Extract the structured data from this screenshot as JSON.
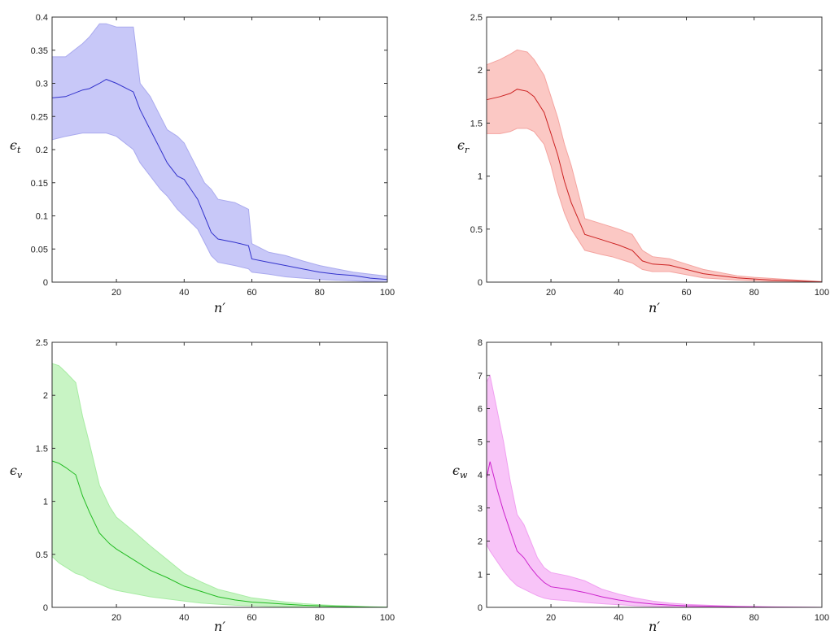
{
  "chart_data": [
    {
      "type": "area",
      "ylabel": {
        "main": "ϵ",
        "sub": "t"
      },
      "xlabel": "n′",
      "xlim": [
        1,
        100
      ],
      "ylim": [
        0,
        0.4
      ],
      "xticks": [
        20,
        40,
        60,
        80,
        100
      ],
      "yticks": [
        0,
        0.05,
        0.1,
        0.15,
        0.2,
        0.25,
        0.3,
        0.35,
        0.4
      ],
      "ytick_labels": [
        "0",
        "0.05",
        "0.1",
        "0.15",
        "0.2",
        "0.25",
        "0.3",
        "0.35",
        "0.4"
      ],
      "line_color": "#3333cc",
      "fill_color": "#c8c8f8",
      "fill_stroke": "#aaaaee",
      "series": [
        {
          "x": [
            1,
            5,
            10,
            12,
            15,
            17,
            20,
            25,
            27,
            30,
            33,
            35,
            38,
            40,
            42,
            44,
            46,
            48,
            50,
            55,
            59,
            60,
            65,
            70,
            75,
            80,
            85,
            90,
            95,
            100
          ],
          "mean": [
            0.278,
            0.28,
            0.29,
            0.292,
            0.3,
            0.306,
            0.3,
            0.287,
            0.26,
            0.23,
            0.2,
            0.18,
            0.16,
            0.155,
            0.14,
            0.125,
            0.1,
            0.075,
            0.065,
            0.06,
            0.055,
            0.035,
            0.03,
            0.025,
            0.02,
            0.015,
            0.012,
            0.01,
            0.006,
            0.004
          ],
          "upper": [
            0.34,
            0.34,
            0.36,
            0.37,
            0.39,
            0.39,
            0.385,
            0.385,
            0.3,
            0.28,
            0.25,
            0.23,
            0.22,
            0.21,
            0.19,
            0.17,
            0.15,
            0.14,
            0.125,
            0.12,
            0.11,
            0.058,
            0.045,
            0.04,
            0.032,
            0.025,
            0.02,
            0.015,
            0.012,
            0.009
          ],
          "lower": [
            0.215,
            0.22,
            0.225,
            0.225,
            0.225,
            0.225,
            0.22,
            0.2,
            0.18,
            0.16,
            0.14,
            0.13,
            0.11,
            0.1,
            0.09,
            0.08,
            0.06,
            0.04,
            0.03,
            0.025,
            0.02,
            0.015,
            0.012,
            0.008,
            0.006,
            0.004,
            0.003,
            0.002,
            0.001,
            0.0
          ]
        }
      ]
    },
    {
      "type": "area",
      "ylabel": {
        "main": "ϵ",
        "sub": "r"
      },
      "xlabel": "n′",
      "xlim": [
        1,
        100
      ],
      "ylim": [
        0,
        2.5
      ],
      "xticks": [
        20,
        40,
        60,
        80,
        100
      ],
      "yticks": [
        0,
        0.5,
        1,
        1.5,
        2,
        2.5
      ],
      "ytick_labels": [
        "0",
        "0.5",
        "1",
        "1.5",
        "2",
        "2.5"
      ],
      "line_color": "#cc2222",
      "fill_color": "#fbc8c4",
      "fill_stroke": "#f4a4a0",
      "series": [
        {
          "x": [
            1,
            5,
            8,
            10,
            13,
            15,
            18,
            20,
            22,
            24,
            26,
            28,
            30,
            35,
            38,
            40,
            44,
            47,
            50,
            55,
            60,
            65,
            70,
            75,
            80,
            85,
            90,
            95,
            100
          ],
          "mean": [
            1.72,
            1.75,
            1.78,
            1.82,
            1.8,
            1.75,
            1.6,
            1.4,
            1.2,
            0.95,
            0.75,
            0.6,
            0.45,
            0.4,
            0.37,
            0.35,
            0.3,
            0.2,
            0.17,
            0.16,
            0.12,
            0.08,
            0.06,
            0.04,
            0.03,
            0.02,
            0.015,
            0.008,
            0.003
          ],
          "upper": [
            2.05,
            2.1,
            2.15,
            2.19,
            2.17,
            2.1,
            1.95,
            1.75,
            1.55,
            1.3,
            1.1,
            0.85,
            0.6,
            0.55,
            0.52,
            0.5,
            0.45,
            0.3,
            0.24,
            0.22,
            0.17,
            0.12,
            0.09,
            0.06,
            0.045,
            0.035,
            0.025,
            0.015,
            0.006
          ],
          "lower": [
            1.4,
            1.4,
            1.42,
            1.45,
            1.45,
            1.42,
            1.3,
            1.1,
            0.85,
            0.65,
            0.5,
            0.4,
            0.3,
            0.26,
            0.24,
            0.22,
            0.18,
            0.12,
            0.1,
            0.1,
            0.07,
            0.04,
            0.03,
            0.02,
            0.012,
            0.008,
            0.005,
            0.002,
            0.0
          ]
        }
      ]
    },
    {
      "type": "area",
      "ylabel": {
        "main": "ϵ",
        "sub": "v"
      },
      "xlabel": "n′",
      "xlim": [
        1,
        100
      ],
      "ylim": [
        0,
        2.5
      ],
      "xticks": [
        20,
        40,
        60,
        80,
        100
      ],
      "yticks": [
        0,
        0.5,
        1,
        1.5,
        2,
        2.5
      ],
      "ytick_labels": [
        "0",
        "0.5",
        "1",
        "1.5",
        "2",
        "2.5"
      ],
      "line_color": "#22bb22",
      "fill_color": "#c8f4c4",
      "fill_stroke": "#a8eca4",
      "series": [
        {
          "x": [
            1,
            3,
            5,
            8,
            10,
            12,
            15,
            18,
            20,
            25,
            30,
            35,
            40,
            45,
            50,
            55,
            60,
            65,
            70,
            75,
            80,
            85,
            90,
            95,
            100
          ],
          "mean": [
            1.38,
            1.36,
            1.32,
            1.25,
            1.05,
            0.9,
            0.7,
            0.6,
            0.55,
            0.45,
            0.35,
            0.28,
            0.2,
            0.15,
            0.1,
            0.07,
            0.05,
            0.04,
            0.03,
            0.02,
            0.015,
            0.01,
            0.006,
            0.003,
            0.001
          ],
          "upper": [
            2.3,
            2.28,
            2.22,
            2.12,
            1.8,
            1.55,
            1.15,
            0.95,
            0.85,
            0.72,
            0.58,
            0.45,
            0.32,
            0.24,
            0.17,
            0.13,
            0.09,
            0.07,
            0.05,
            0.035,
            0.025,
            0.018,
            0.012,
            0.006,
            0.002
          ],
          "lower": [
            0.48,
            0.42,
            0.38,
            0.32,
            0.3,
            0.26,
            0.22,
            0.18,
            0.16,
            0.13,
            0.1,
            0.08,
            0.06,
            0.04,
            0.03,
            0.02,
            0.015,
            0.01,
            0.008,
            0.005,
            0.003,
            0.002,
            0.001,
            0.0,
            0.0
          ]
        }
      ]
    },
    {
      "type": "area",
      "ylabel": {
        "main": "ϵ",
        "sub": "w"
      },
      "xlabel": "n′",
      "xlim": [
        1,
        100
      ],
      "ylim": [
        0,
        8
      ],
      "xticks": [
        20,
        40,
        60,
        80,
        100
      ],
      "yticks": [
        0,
        1,
        2,
        3,
        4,
        5,
        6,
        7,
        8
      ],
      "ytick_labels": [
        "0",
        "1",
        "2",
        "3",
        "4",
        "5",
        "6",
        "7",
        "8"
      ],
      "line_color": "#cc22cc",
      "fill_color": "#f8c4f8",
      "fill_stroke": "#f0a0f0",
      "series": [
        {
          "x": [
            1,
            2,
            4,
            6,
            8,
            10,
            12,
            14,
            16,
            18,
            20,
            25,
            30,
            35,
            40,
            45,
            50,
            55,
            60,
            65,
            70,
            75,
            80,
            85,
            90,
            95,
            100
          ],
          "mean": [
            3.9,
            4.4,
            3.6,
            2.9,
            2.3,
            1.7,
            1.5,
            1.2,
            0.95,
            0.75,
            0.62,
            0.55,
            0.45,
            0.32,
            0.22,
            0.15,
            0.1,
            0.07,
            0.05,
            0.04,
            0.03,
            0.02,
            0.015,
            0.01,
            0.006,
            0.003,
            0.001
          ],
          "upper": [
            6.8,
            7.0,
            6.0,
            5.0,
            3.8,
            2.8,
            2.5,
            2.0,
            1.5,
            1.2,
            1.05,
            0.95,
            0.8,
            0.55,
            0.4,
            0.28,
            0.19,
            0.13,
            0.09,
            0.07,
            0.05,
            0.035,
            0.025,
            0.015,
            0.01,
            0.005,
            0.002
          ],
          "lower": [
            1.9,
            1.7,
            1.4,
            1.1,
            0.85,
            0.65,
            0.55,
            0.45,
            0.35,
            0.28,
            0.24,
            0.2,
            0.15,
            0.11,
            0.08,
            0.05,
            0.035,
            0.025,
            0.018,
            0.012,
            0.008,
            0.005,
            0.003,
            0.002,
            0.001,
            0.0,
            0.0
          ]
        }
      ]
    }
  ]
}
